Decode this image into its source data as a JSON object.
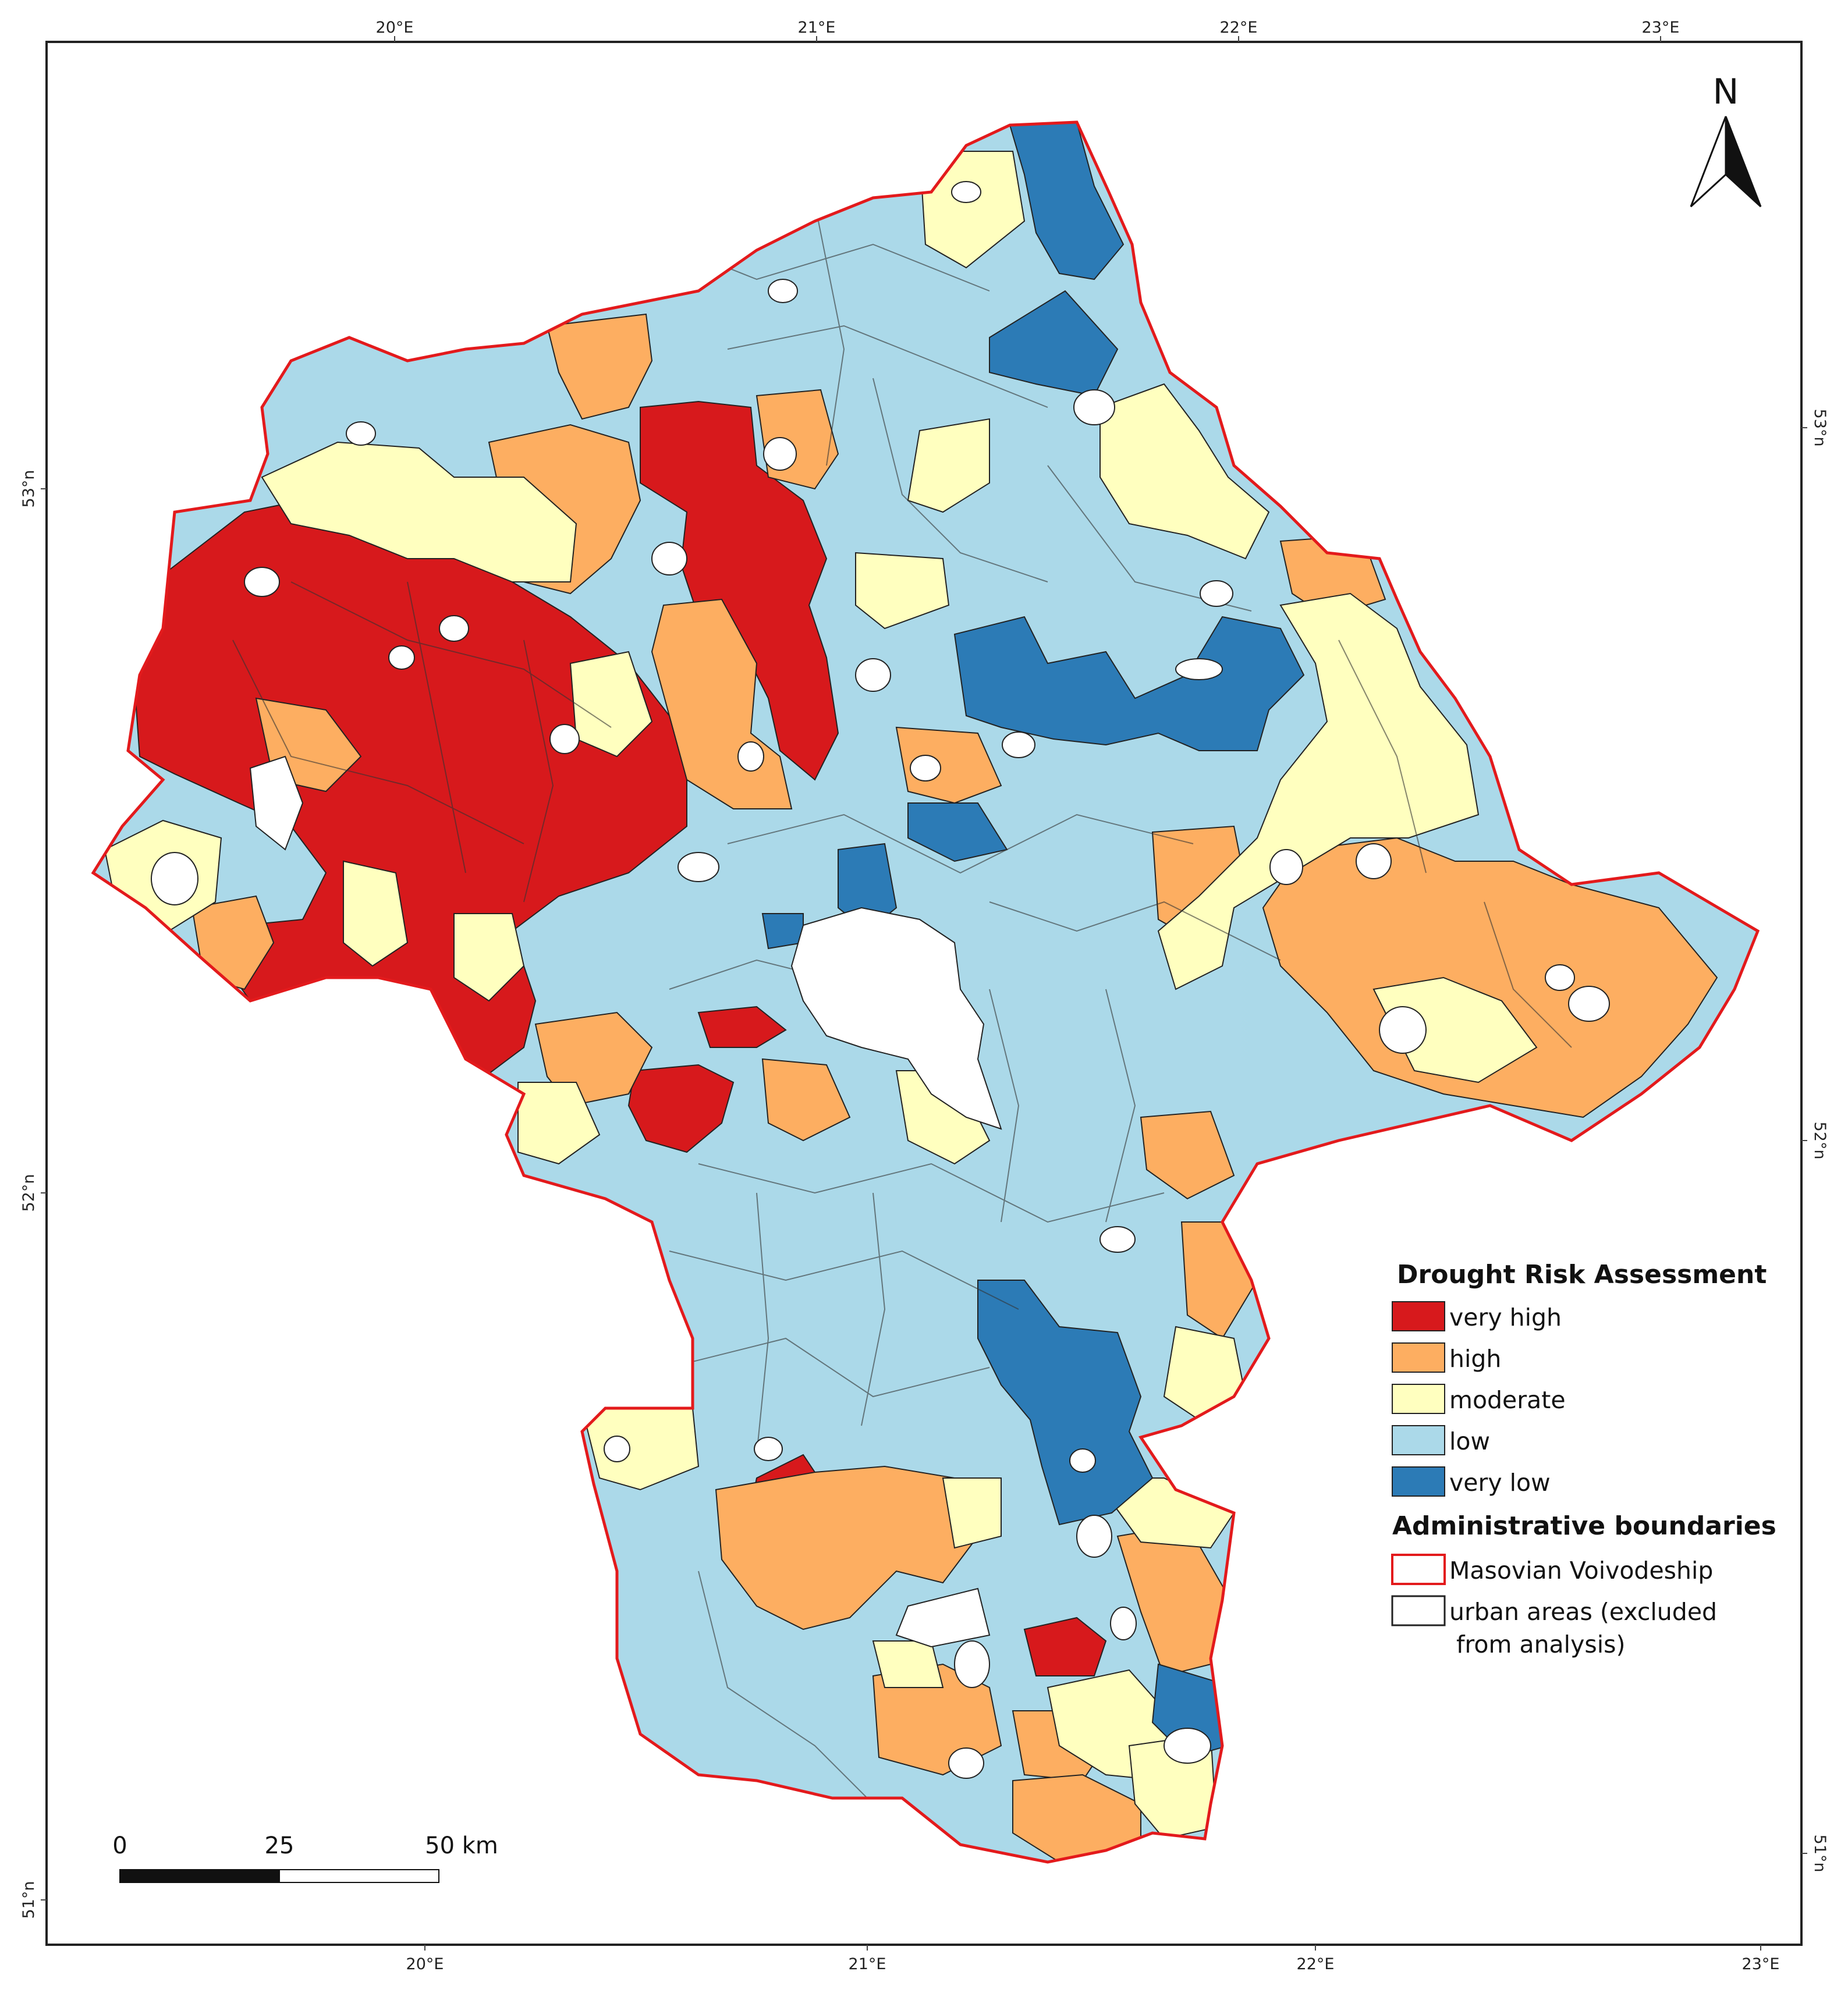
{
  "map": {
    "top_lon_ticks": [
      "20°E",
      "21°E",
      "22°E",
      "23°E"
    ],
    "bottom_lon_ticks": [
      "20°E",
      "21°E",
      "22°E",
      "23°E"
    ],
    "left_lat_ticks": [
      "53°n",
      "52°n",
      "51°n"
    ],
    "right_lat_ticks": [
      "53°n",
      "52°n",
      "51°n"
    ],
    "north_arrow_label": "N",
    "colors": {
      "very_high": "#d7191c",
      "high": "#fdae61",
      "moderate": "#ffffbf",
      "low": "#abd9e9",
      "very_low": "#2c7bb6",
      "urban": "#ffffff",
      "boundary": "#e31a1c"
    }
  },
  "legend": {
    "title": "Drought Risk Assessment",
    "items": [
      {
        "label": "very high",
        "color": "#d7191c"
      },
      {
        "label": "high",
        "color": "#fdae61"
      },
      {
        "label": "moderate",
        "color": "#ffffbf"
      },
      {
        "label": "low",
        "color": "#abd9e9"
      },
      {
        "label": "very low",
        "color": "#2c7bb6"
      }
    ],
    "boundaries_title": "Administrative boundaries",
    "boundary_items": [
      {
        "label": "Masovian Voivodeship",
        "stroke": "#e31a1c"
      },
      {
        "label_line1": "urban areas (excluded",
        "label_line2": "from analysis)",
        "stroke": "#222222"
      }
    ]
  },
  "scale_bar": {
    "labels": [
      "0",
      "25",
      "50 km"
    ]
  }
}
